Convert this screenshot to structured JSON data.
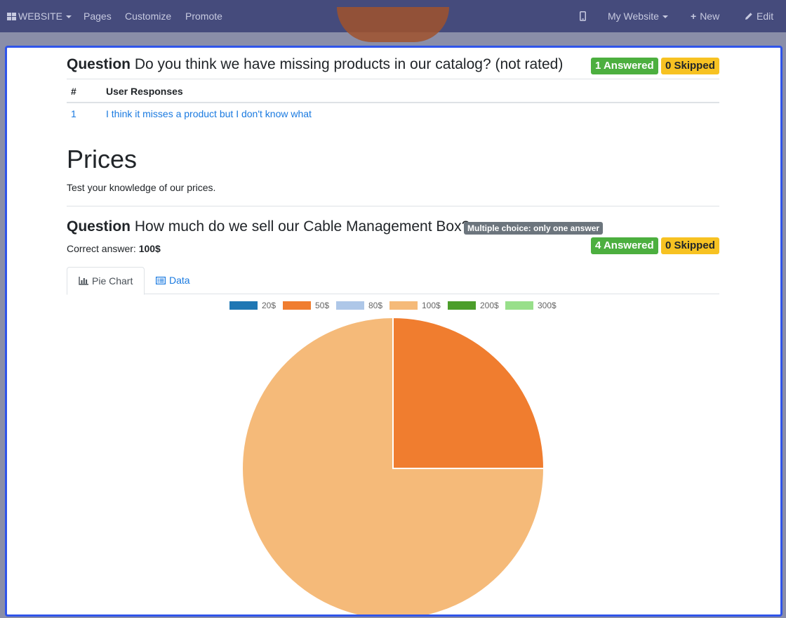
{
  "topbar": {
    "website_label": "WEBSITE",
    "pages_label": "Pages",
    "customize_label": "Customize",
    "promote_label": "Promote",
    "my_website_label": "My Website",
    "new_label": "New",
    "edit_label": "Edit"
  },
  "question1": {
    "label": "Question",
    "text": "Do you think we have missing products in our catalog? (not rated)",
    "answered": "1 Answered",
    "skipped": "0 Skipped",
    "table": {
      "headers": [
        "#",
        "User Responses"
      ],
      "rows": [
        {
          "num": "1",
          "response": "I think it misses a product but I don't know what"
        }
      ]
    }
  },
  "section": {
    "title": "Prices",
    "description": "Test your knowledge of our prices."
  },
  "question2": {
    "label": "Question",
    "text": "How much do we sell our Cable Management Box?",
    "type_badge": "Multiple choice: only one answer",
    "correct_label": "Correct answer:",
    "correct_value": "100$",
    "answered": "4 Answered",
    "skipped": "0 Skipped",
    "tabs": [
      "Pie Chart",
      "Data"
    ]
  },
  "chart_data": {
    "type": "pie",
    "categories": [
      "20$",
      "50$",
      "80$",
      "100$",
      "200$",
      "300$"
    ],
    "values": [
      0,
      1,
      0,
      3,
      0,
      0
    ],
    "colors": [
      "#1f77b4",
      "#f07d2f",
      "#aec7e8",
      "#f5ba79",
      "#4c9e2b",
      "#98df8a"
    ],
    "legend": "top"
  }
}
